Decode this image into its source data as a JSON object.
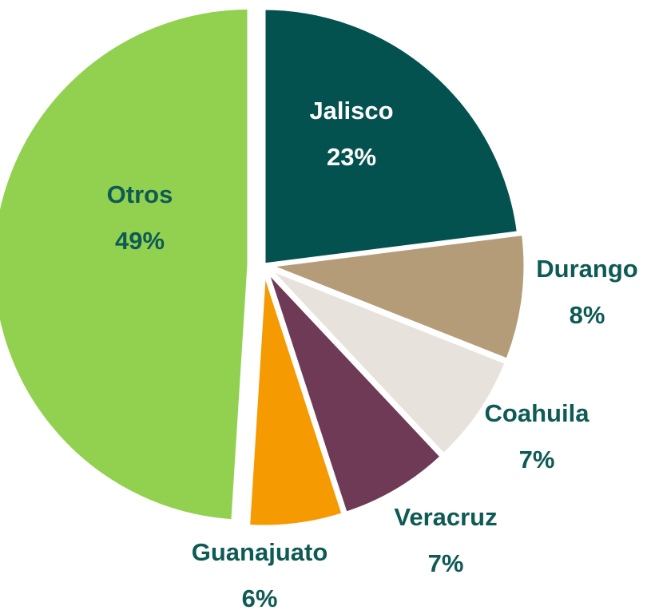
{
  "chart_data": {
    "type": "pie",
    "categories": [
      "Jalisco",
      "Durango",
      "Coahuila",
      "Veracruz",
      "Guanajuato",
      "Otros"
    ],
    "values": [
      23,
      8,
      7,
      7,
      6,
      49
    ],
    "value_labels": [
      "23%",
      "8%",
      "7%",
      "7%",
      "6%",
      "49%"
    ],
    "colors": [
      "#04524f",
      "#b49c78",
      "#e8e2dc",
      "#6e3a55",
      "#f59a00",
      "#92d050"
    ]
  }
}
